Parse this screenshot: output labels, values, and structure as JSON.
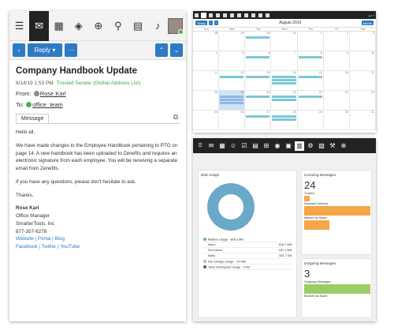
{
  "email": {
    "subject": "Company Handbook Update",
    "date": "8/14/19 1:53 PM",
    "trusted": "Trusted Sender (Global Address List)",
    "from_label": "From:",
    "from_name": "Rose Karl",
    "to_label": "To:",
    "to_name": "office_team",
    "reply_label": "Reply",
    "tab_label": "Message",
    "body": [
      "Hello all,",
      "We have made changes to the Employee Handbook pertaining to PTO on page 14.  A new handbook has been uploaded to Zenefits and requires an electronic signature from each employee.  You will be receiving a separate email from Zenefits.",
      "If you have any questions, please don't hesitate to ask.",
      "Thanks,"
    ],
    "sig_name": "Rose Karl",
    "sig_title": "Office Manager",
    "sig_company": "SmarterTools, Inc",
    "sig_phone": "877-357-6278",
    "sig_links1": "Website | Portal | Blog",
    "sig_links2": "Facebook | Twitter | YouTube"
  },
  "calendar": {
    "title": "August 2019",
    "nav_today": "Today",
    "nav_month": "Month",
    "days": [
      "Sun",
      "Mon",
      "Tue",
      "Wed",
      "Thu",
      "Fri",
      "Sat"
    ],
    "dates": [
      "28",
      "29",
      "30",
      "31",
      "1",
      "2",
      "3",
      "4",
      "5",
      "6",
      "7",
      "8",
      "9",
      "10",
      "11",
      "12",
      "13",
      "14",
      "15",
      "16",
      "17",
      "18",
      "19",
      "20",
      "21",
      "22",
      "23",
      "24",
      "25",
      "26",
      "27",
      "28",
      "29",
      "30",
      "31"
    ]
  },
  "reports": {
    "disk_title": "Disk Usage",
    "legend": [
      {
        "label": "Mailbox Usage - 806.3 MB",
        "value": "",
        "color": "#6aa9c7"
      },
      {
        "label": "Inbox",
        "value": "618.7 MB",
        "color": ""
      },
      {
        "label": "Sent Items",
        "value": "187.1 MB",
        "color": ""
      },
      {
        "label": "Mails",
        "value": "501.7 KB",
        "color": ""
      },
      {
        "label": "File Storage Usage - 3.9 MB",
        "value": "",
        "color": "#b7b7b7"
      },
      {
        "label": "Team Workspace Usage - 0 KB",
        "value": "",
        "color": "#5a5a8a"
      }
    ],
    "incoming_title": "Incoming Messages",
    "incoming_count": "24",
    "trusted_label": "Trusted",
    "standard_label": "Standard Delivery",
    "spam_label": "Marked as Spam",
    "outgoing_title": "Outgoing Messages",
    "outgoing_count": "3",
    "outgoing_label": "Outgoing Messages",
    "blocked_label": "Blocked as Spam",
    "bar_color_orange": "#f5a646",
    "bar_color_green": "#9ccc65"
  }
}
